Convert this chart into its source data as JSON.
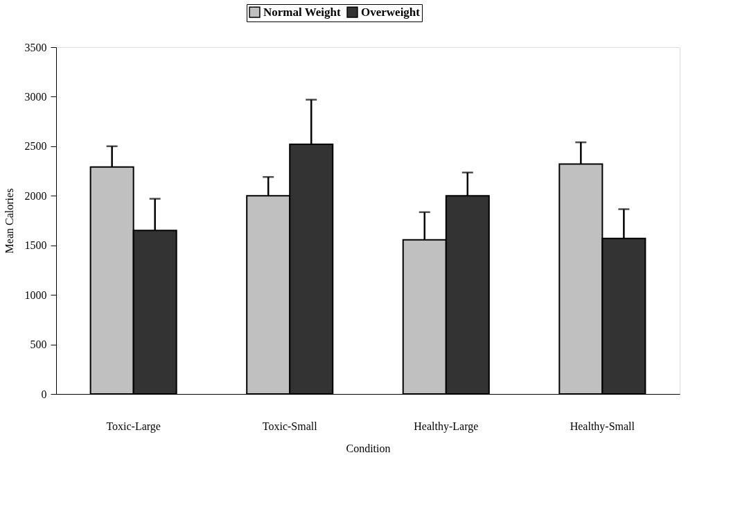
{
  "chart_data": {
    "type": "bar",
    "xlabel": "Condition",
    "ylabel": "Mean Calories",
    "categories": [
      "Toxic-Large",
      "Toxic-Small",
      "Healthy-Large",
      "Healthy-Small"
    ],
    "series": [
      {
        "name": "Normal Weight",
        "color": "#c0c0c0",
        "values": [
          2290,
          2000,
          1555,
          2320
        ],
        "errors": [
          210,
          190,
          280,
          220
        ]
      },
      {
        "name": "Overweight",
        "color": "#333333",
        "values": [
          1650,
          2520,
          2000,
          1570
        ],
        "errors": [
          320,
          450,
          235,
          295
        ]
      }
    ],
    "ylim": [
      0,
      3500
    ],
    "yticks": [
      0,
      500,
      1000,
      1500,
      2000,
      2500,
      3000,
      3500
    ],
    "grid": false,
    "legend": "top"
  }
}
